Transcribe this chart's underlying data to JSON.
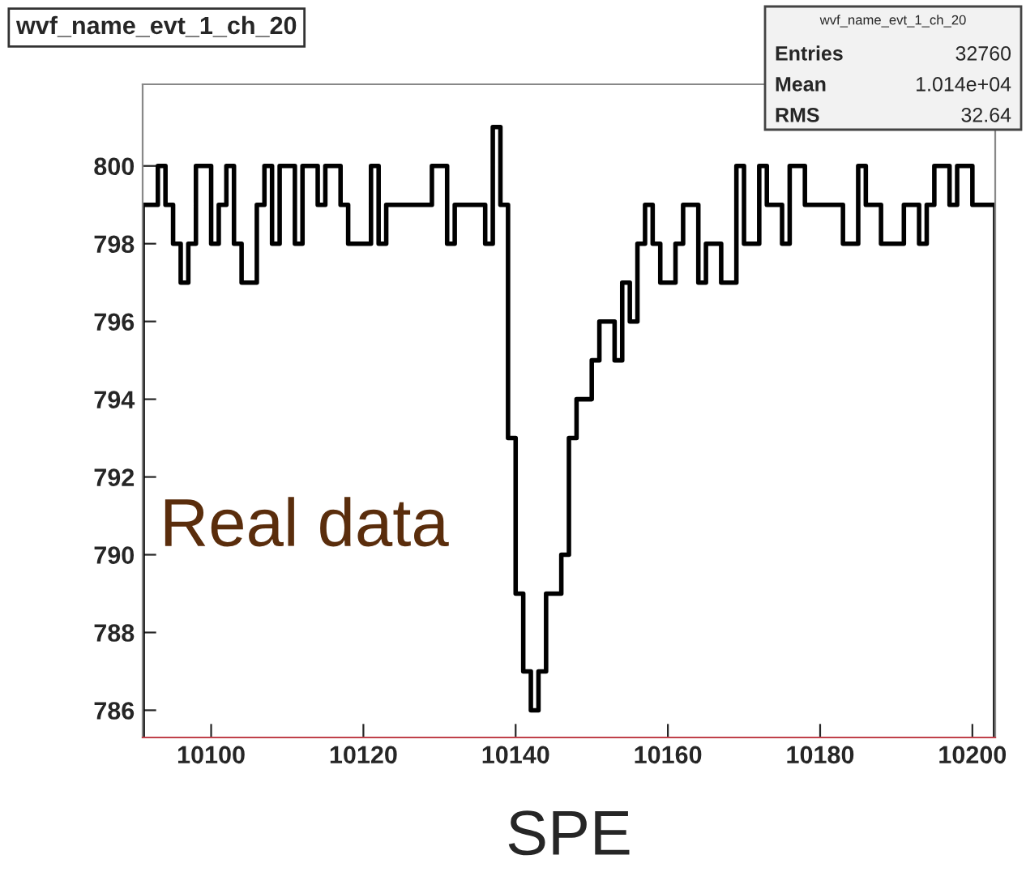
{
  "chart_data": {
    "type": "histogram",
    "title": "wvf_name_evt_1_ch_20",
    "xlabel": "SPE",
    "bins": [
      10091,
      10092,
      10093,
      10094,
      10095,
      10096,
      10097,
      10098,
      10099,
      10100,
      10101,
      10102,
      10103,
      10104,
      10105,
      10106,
      10107,
      10108,
      10109,
      10110,
      10111,
      10112,
      10113,
      10114,
      10115,
      10116,
      10117,
      10118,
      10119,
      10120,
      10121,
      10122,
      10123,
      10124,
      10125,
      10126,
      10127,
      10128,
      10129,
      10130,
      10131,
      10132,
      10133,
      10134,
      10135,
      10136,
      10137,
      10138,
      10139,
      10140,
      10141,
      10142,
      10143,
      10144,
      10145,
      10146,
      10147,
      10148,
      10149,
      10150,
      10151,
      10152,
      10153,
      10154,
      10155,
      10156,
      10157,
      10158,
      10159,
      10160,
      10161,
      10162,
      10163,
      10164,
      10165,
      10166,
      10167,
      10168,
      10169,
      10170,
      10171,
      10172,
      10173,
      10174,
      10175,
      10176,
      10177,
      10178,
      10179,
      10180,
      10181,
      10182,
      10183,
      10184,
      10185,
      10186,
      10187,
      10188,
      10189,
      10190,
      10191,
      10192,
      10193,
      10194,
      10195,
      10196,
      10197,
      10198,
      10199,
      10200,
      10201,
      10202,
      10203
    ],
    "values": [
      799,
      799,
      800,
      799,
      798,
      797,
      798,
      800,
      800,
      798,
      799,
      800,
      798,
      797,
      797,
      799,
      800,
      798,
      800,
      800,
      798,
      800,
      800,
      799,
      800,
      800,
      799,
      798,
      798,
      798,
      800,
      798,
      799,
      799,
      799,
      799,
      799,
      799,
      800,
      800,
      798,
      799,
      799,
      799,
      799,
      798,
      801,
      799,
      793,
      789,
      787,
      786,
      787,
      789,
      789,
      790,
      793,
      794,
      794,
      795,
      796,
      796,
      795,
      797,
      796,
      798,
      799,
      798,
      797,
      797,
      798,
      799,
      799,
      797,
      798,
      798,
      797,
      797,
      800,
      798,
      798,
      800,
      799,
      799,
      798,
      800,
      800,
      799,
      799,
      799,
      799,
      799,
      798,
      798,
      800,
      799,
      799,
      798,
      798,
      798,
      799,
      799,
      798,
      799,
      800,
      800,
      799,
      800,
      800,
      799,
      799,
      799
    ],
    "color": "#000000",
    "xlim": [
      10091,
      10203
    ],
    "xticks": [
      10100,
      10120,
      10140,
      10160,
      10180,
      10200
    ],
    "ylim": [
      785.3,
      802.1
    ],
    "yticks": [
      786,
      788,
      790,
      792,
      794,
      796,
      798,
      800
    ],
    "grid": false,
    "legend": false,
    "annotations": [
      "Real data",
      "wvf_name_evt_1_ch_20",
      "Entries",
      "32760",
      "Mean",
      "1.014e+04",
      "RMS",
      "32.64"
    ]
  }
}
